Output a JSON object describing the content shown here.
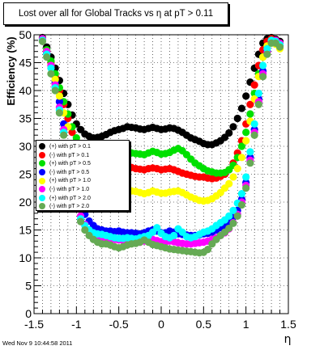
{
  "chart_data": {
    "type": "scatter",
    "title": "Lost over all for Global Tracks vs   η at pT > 0.11",
    "xlabel": "η",
    "ylabel": "Efficiency (%)",
    "xlim": [
      -1.5,
      1.5
    ],
    "ylim": [
      0,
      50
    ],
    "x_ticks": [
      "-1.5",
      "-1",
      "-0.5",
      "0",
      "0.5",
      "1",
      "1.5"
    ],
    "y_ticks": [
      "0",
      "5",
      "10",
      "15",
      "20",
      "25",
      "30",
      "35",
      "40",
      "45",
      "50"
    ],
    "grid": true,
    "legend_position": "middle-left",
    "series": [
      {
        "name": "(+) with pT > 0.1",
        "color": "#000000",
        "x": [
          -1.4,
          -1.35,
          -1.3,
          -1.25,
          -1.2,
          -1.15,
          -1.1,
          -1.05,
          -1.0,
          -0.95,
          -0.9,
          -0.85,
          -0.8,
          -0.75,
          -0.7,
          -0.65,
          -0.6,
          -0.55,
          -0.5,
          -0.45,
          -0.4,
          -0.35,
          -0.3,
          -0.25,
          -0.2,
          -0.15,
          -0.1,
          -0.05,
          0.0,
          0.05,
          0.1,
          0.15,
          0.2,
          0.25,
          0.3,
          0.35,
          0.4,
          0.45,
          0.5,
          0.55,
          0.6,
          0.65,
          0.7,
          0.75,
          0.8,
          0.85,
          0.9,
          0.95,
          1.0,
          1.05,
          1.1,
          1.15,
          1.2,
          1.25,
          1.3,
          1.35,
          1.4
        ],
        "y": [
          49.5,
          47.8,
          46,
          44,
          41.8,
          39.5,
          37.5,
          35.6,
          34,
          33,
          32.2,
          31.8,
          31.5,
          31.6,
          31.8,
          32.1,
          32.5,
          32.8,
          33,
          33.2,
          33.5,
          33.4,
          33.3,
          33.1,
          33,
          33.2,
          33.4,
          33.2,
          33,
          33.1,
          33.3,
          33.2,
          32.9,
          32.5,
          32,
          31.5,
          31.2,
          30.9,
          30.5,
          30.3,
          30.3,
          30.6,
          31,
          31.6,
          32.4,
          33.5,
          35,
          36.8,
          39,
          41.5,
          44,
          46.5,
          48.5,
          49.3,
          49.5,
          49.2,
          48.8
        ]
      },
      {
        "name": "(-) with pT > 0.1",
        "color": "#ff0000",
        "x": [
          -1.4,
          -1.35,
          -1.3,
          -1.25,
          -1.2,
          -1.15,
          -1.1,
          -1.05,
          -1.0,
          -0.95,
          -0.9,
          -0.85,
          -0.8,
          -0.75,
          -0.7,
          -0.65,
          -0.6,
          -0.55,
          -0.5,
          -0.45,
          -0.4,
          -0.35,
          -0.3,
          -0.25,
          -0.2,
          -0.15,
          -0.1,
          -0.05,
          0.0,
          0.05,
          0.1,
          0.15,
          0.2,
          0.25,
          0.3,
          0.35,
          0.4,
          0.45,
          0.5,
          0.55,
          0.6,
          0.65,
          0.7,
          0.75,
          0.8,
          0.85,
          0.9,
          0.95,
          1.0,
          1.05,
          1.1,
          1.15,
          1.2,
          1.25,
          1.3,
          1.35,
          1.4
        ],
        "y": [
          49,
          47,
          45,
          42.5,
          40,
          37.5,
          35,
          32.5,
          30,
          28.5,
          27.3,
          26.5,
          26,
          25.8,
          25.7,
          25.8,
          26,
          26.2,
          26.4,
          26.5,
          26.4,
          26.2,
          26,
          25.9,
          25.8,
          26,
          26.1,
          26,
          25.8,
          25.9,
          26,
          25.8,
          25.5,
          25.2,
          25,
          24.8,
          24.6,
          24.5,
          24.5,
          24.3,
          24.2,
          24.3,
          24.6,
          25,
          25.8,
          27,
          28.8,
          31,
          34,
          37.5,
          41,
          44.5,
          47.3,
          48.8,
          49.3,
          49,
          48.5
        ]
      },
      {
        "name": "(+) with pT > 0.5",
        "color": "#00e000",
        "x": [
          -1.4,
          -1.35,
          -1.3,
          -1.25,
          -1.2,
          -1.15,
          -1.1,
          -1.05,
          -1.0,
          -0.95,
          -0.9,
          -0.85,
          -0.8,
          -0.75,
          -0.7,
          -0.65,
          -0.6,
          -0.55,
          -0.5,
          -0.45,
          -0.4,
          -0.35,
          -0.3,
          -0.25,
          -0.2,
          -0.15,
          -0.1,
          -0.05,
          0.0,
          0.05,
          0.1,
          0.15,
          0.2,
          0.25,
          0.3,
          0.35,
          0.4,
          0.45,
          0.5,
          0.55,
          0.6,
          0.65,
          0.7,
          0.75,
          0.8,
          0.85,
          0.9,
          0.95,
          1.0,
          1.05,
          1.1,
          1.15,
          1.2,
          1.25,
          1.3,
          1.35,
          1.4
        ],
        "y": [
          49.3,
          47.3,
          45.3,
          43,
          40.5,
          38,
          35.8,
          33.5,
          31.5,
          30.3,
          29.5,
          29.1,
          29,
          29,
          29.1,
          29.2,
          29.3,
          29.3,
          29.2,
          29.1,
          29,
          28.8,
          28.7,
          28.6,
          28.5,
          28.8,
          29.1,
          28.9,
          28.6,
          28.7,
          28.9,
          29.3,
          29.6,
          29.2,
          28.5,
          27.7,
          27,
          26.5,
          26,
          25.6,
          25.4,
          25.2,
          25.2,
          25.3,
          25.8,
          26.6,
          28,
          30,
          32.5,
          35.8,
          39.5,
          43,
          46,
          48,
          49,
          48.8,
          48
        ]
      },
      {
        "name": "(-) with pT > 0.5",
        "color": "#0000ff",
        "x": [
          -1.4,
          -1.35,
          -1.3,
          -1.25,
          -1.2,
          -1.15,
          -1.1,
          -1.05,
          -1.0,
          -0.95,
          -0.9,
          -0.85,
          -0.8,
          -0.75,
          -0.7,
          -0.65,
          -0.6,
          -0.55,
          -0.5,
          -0.45,
          -0.4,
          -0.35,
          -0.3,
          -0.25,
          -0.2,
          -0.15,
          -0.1,
          -0.05,
          0.0,
          0.05,
          0.1,
          0.15,
          0.2,
          0.25,
          0.3,
          0.35,
          0.4,
          0.45,
          0.5,
          0.55,
          0.6,
          0.65,
          0.7,
          0.75,
          0.8,
          0.85,
          0.9,
          0.95,
          1.0,
          1.05,
          1.1,
          1.15,
          1.2,
          1.25,
          1.3,
          1.35,
          1.4
        ],
        "y": [
          49,
          46.8,
          44.5,
          41.5,
          38,
          34,
          30,
          26,
          22,
          19.5,
          17.8,
          16.6,
          15.8,
          15.2,
          15,
          14.8,
          14.8,
          14.7,
          14.8,
          14.6,
          14.5,
          14.5,
          14.4,
          14.3,
          14.5,
          14.8,
          15,
          14.8,
          14.5,
          14.5,
          14.8,
          14.6,
          14.3,
          14.2,
          14.1,
          14,
          14,
          14.1,
          14.3,
          14.4,
          14.6,
          15,
          15.4,
          15.8,
          16.4,
          17.3,
          18.5,
          20.5,
          23.5,
          28,
          33,
          38.5,
          43.5,
          47,
          48.8,
          48.6,
          48
        ]
      },
      {
        "name": "(+) with pT > 1.0",
        "color": "#ffff00",
        "x": [
          -1.4,
          -1.35,
          -1.3,
          -1.25,
          -1.2,
          -1.15,
          -1.1,
          -1.05,
          -1.0,
          -0.95,
          -0.9,
          -0.85,
          -0.8,
          -0.75,
          -0.7,
          -0.65,
          -0.6,
          -0.55,
          -0.5,
          -0.45,
          -0.4,
          -0.35,
          -0.3,
          -0.25,
          -0.2,
          -0.15,
          -0.1,
          -0.05,
          0.0,
          0.05,
          0.1,
          0.15,
          0.2,
          0.25,
          0.3,
          0.35,
          0.4,
          0.45,
          0.5,
          0.55,
          0.6,
          0.65,
          0.7,
          0.75,
          0.8,
          0.85,
          0.9,
          0.95,
          1.0,
          1.05,
          1.1,
          1.15,
          1.2,
          1.25,
          1.3,
          1.35,
          1.4
        ],
        "y": [
          49.2,
          47,
          44.5,
          42,
          39,
          36,
          33.5,
          30.5,
          28,
          26,
          24.5,
          23.5,
          22.8,
          22.3,
          22,
          21.8,
          21.7,
          21.7,
          21.8,
          22,
          22.1,
          22,
          21.9,
          21.7,
          21.5,
          21.7,
          22,
          21.8,
          21.6,
          21.6,
          21.8,
          21.9,
          22,
          21.7,
          21.3,
          20.9,
          20.6,
          20.3,
          20.2,
          20.3,
          20.6,
          21.1,
          21.7,
          22.5,
          23.3,
          24.5,
          26,
          28,
          31,
          34.5,
          38.5,
          42.5,
          46,
          48,
          48.8,
          48.3,
          47.5
        ]
      },
      {
        "name": "(-) with pT > 1.0",
        "color": "#ff00ff",
        "x": [
          -1.4,
          -1.35,
          -1.3,
          -1.25,
          -1.2,
          -1.15,
          -1.1,
          -1.05,
          -1.0,
          -0.95,
          -0.9,
          -0.85,
          -0.8,
          -0.75,
          -0.7,
          -0.65,
          -0.6,
          -0.55,
          -0.5,
          -0.45,
          -0.4,
          -0.35,
          -0.3,
          -0.25,
          -0.2,
          -0.15,
          -0.1,
          -0.05,
          0.0,
          0.05,
          0.1,
          0.15,
          0.2,
          0.25,
          0.3,
          0.35,
          0.4,
          0.45,
          0.5,
          0.55,
          0.6,
          0.65,
          0.7,
          0.75,
          0.8,
          0.85,
          0.9,
          0.95,
          1.0,
          1.05,
          1.1,
          1.15,
          1.2,
          1.25,
          1.3,
          1.35,
          1.4
        ],
        "y": [
          49.3,
          47,
          44.5,
          41,
          37,
          33,
          28.5,
          24,
          20,
          17.5,
          16,
          14.8,
          14.2,
          13.8,
          13.6,
          13.5,
          13.4,
          13.3,
          13.2,
          13.1,
          13,
          12.9,
          12.9,
          12.8,
          13,
          13.2,
          13.3,
          13.1,
          12.9,
          12.8,
          13,
          12.9,
          12.7,
          12.6,
          12.5,
          12.5,
          12.6,
          12.7,
          12.8,
          13,
          13.3,
          13.6,
          14,
          14.5,
          15.2,
          16.3,
          17.8,
          20,
          23,
          27.5,
          32.5,
          38,
          43,
          46.8,
          48.8,
          49,
          48.5
        ]
      },
      {
        "name": "(+) with pT > 2.0",
        "color": "#00ffff",
        "x": [
          -1.4,
          -1.35,
          -1.3,
          -1.25,
          -1.2,
          -1.15,
          -1.1,
          -1.05,
          -1.0,
          -0.95,
          -0.9,
          -0.85,
          -0.8,
          -0.75,
          -0.7,
          -0.65,
          -0.6,
          -0.55,
          -0.5,
          -0.45,
          -0.4,
          -0.35,
          -0.3,
          -0.25,
          -0.2,
          -0.15,
          -0.1,
          -0.05,
          0.0,
          0.05,
          0.1,
          0.15,
          0.2,
          0.25,
          0.3,
          0.35,
          0.4,
          0.45,
          0.5,
          0.55,
          0.6,
          0.65,
          0.7,
          0.75,
          0.8,
          0.85,
          0.9,
          0.95,
          1.0,
          1.05,
          1.1,
          1.15,
          1.2,
          1.25,
          1.3,
          1.35,
          1.4
        ],
        "y": [
          49,
          46.5,
          44,
          40.5,
          36.5,
          32.5,
          28,
          23.5,
          19.5,
          17,
          15.8,
          15,
          14.5,
          14.3,
          14.2,
          14,
          13.8,
          13.6,
          13.5,
          13.5,
          13.6,
          13.5,
          13.4,
          13.6,
          13.8,
          14,
          14.6,
          15.4,
          14.4,
          13.8,
          13.6,
          14,
          15.2,
          14.6,
          13.8,
          13.6,
          13.8,
          14.2,
          14.6,
          14.8,
          15.2,
          15.8,
          16.3,
          16.8,
          17.5,
          18.5,
          19.8,
          21.5,
          24.5,
          29,
          34,
          39.5,
          44.5,
          47.5,
          49,
          48.8,
          48.2
        ]
      },
      {
        "name": "(-) with pT > 2.0",
        "color": "#66aa55",
        "x": [
          -1.4,
          -1.35,
          -1.3,
          -1.25,
          -1.2,
          -1.15,
          -1.1,
          -1.05,
          -1.0,
          -0.95,
          -0.9,
          -0.85,
          -0.8,
          -0.75,
          -0.7,
          -0.65,
          -0.6,
          -0.55,
          -0.5,
          -0.45,
          -0.4,
          -0.35,
          -0.3,
          -0.25,
          -0.2,
          -0.15,
          -0.1,
          -0.05,
          0.0,
          0.05,
          0.1,
          0.15,
          0.2,
          0.25,
          0.3,
          0.35,
          0.4,
          0.45,
          0.5,
          0.55,
          0.6,
          0.65,
          0.7,
          0.75,
          0.8,
          0.85,
          0.9,
          0.95,
          1.0,
          1.05,
          1.1,
          1.15,
          1.2,
          1.25,
          1.3,
          1.35,
          1.4
        ],
        "y": [
          48.8,
          46,
          43,
          40,
          36,
          32,
          27.5,
          23,
          19,
          16.5,
          15,
          14,
          13.3,
          12.8,
          12.5,
          12.5,
          12.3,
          12,
          11.8,
          12,
          12.3,
          12.5,
          12.6,
          12.8,
          13.2,
          12.8,
          12.4,
          12.2,
          12,
          11.8,
          11.6,
          11.5,
          11.4,
          11.3,
          11.2,
          11.1,
          11,
          10.9,
          11,
          11.5,
          12.5,
          13.3,
          14,
          14.6,
          15.3,
          16.2,
          17.5,
          19.5,
          22.5,
          27,
          32,
          37.5,
          42.5,
          46.5,
          48.5,
          48.5,
          47.8
        ]
      }
    ]
  },
  "timestamp": "Wed Nov  9 10:44:58 2011"
}
